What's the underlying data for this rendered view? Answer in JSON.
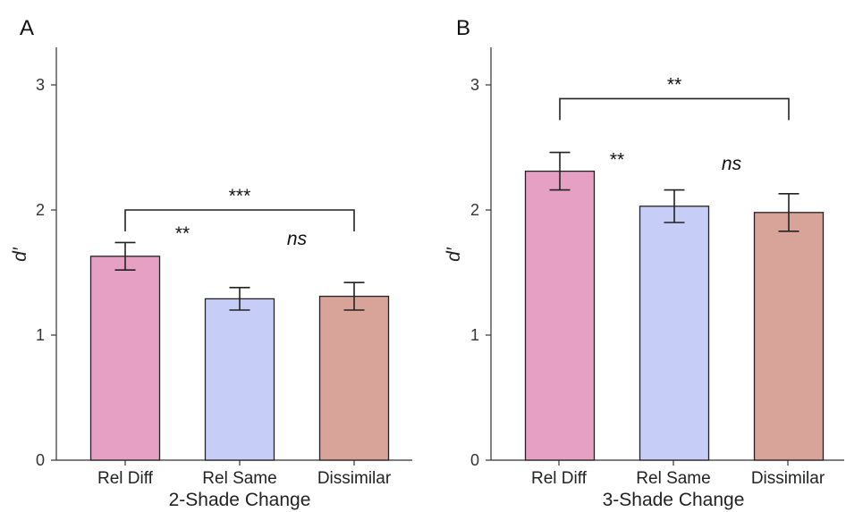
{
  "chart_data": [
    {
      "type": "bar",
      "panel_label": "A",
      "xlabel": "2-Shade Change",
      "ylabel": "d′",
      "ylim": [
        0,
        3.3
      ],
      "yticks": [
        "0",
        "1",
        "2",
        "3"
      ],
      "categories": [
        "Rel Diff",
        "Rel Same",
        "Dissimilar"
      ],
      "values": [
        1.63,
        1.29,
        1.31
      ],
      "error": [
        0.11,
        0.09,
        0.11
      ],
      "colors": [
        "#e6a0c4",
        "#c6cdf7",
        "#d8a499"
      ],
      "grid": false,
      "annotations": [
        {
          "text": "***",
          "type": "bracket",
          "from": 0,
          "to": 2,
          "y": 2.0
        },
        {
          "text": "**",
          "type": "label",
          "x": 0.5,
          "y": 1.82,
          "italic": false
        },
        {
          "text": "ns",
          "type": "label",
          "x": 1.5,
          "y": 1.78,
          "italic": true
        }
      ]
    },
    {
      "type": "bar",
      "panel_label": "B",
      "xlabel": "3-Shade Change",
      "ylabel": "d′",
      "ylim": [
        0,
        3.3
      ],
      "yticks": [
        "0",
        "1",
        "2",
        "3"
      ],
      "categories": [
        "Rel Diff",
        "Rel Same",
        "Dissimilar"
      ],
      "values": [
        2.31,
        2.03,
        1.98
      ],
      "error": [
        0.15,
        0.13,
        0.15
      ],
      "colors": [
        "#e6a0c4",
        "#c6cdf7",
        "#d8a499"
      ],
      "grid": false,
      "annotations": [
        {
          "text": "**",
          "type": "bracket",
          "from": 0,
          "to": 2,
          "y": 2.89
        },
        {
          "text": "**",
          "type": "label",
          "x": 0.5,
          "y": 2.41,
          "italic": false
        },
        {
          "text": "ns",
          "type": "label",
          "x": 1.5,
          "y": 2.38,
          "italic": true
        }
      ]
    }
  ]
}
